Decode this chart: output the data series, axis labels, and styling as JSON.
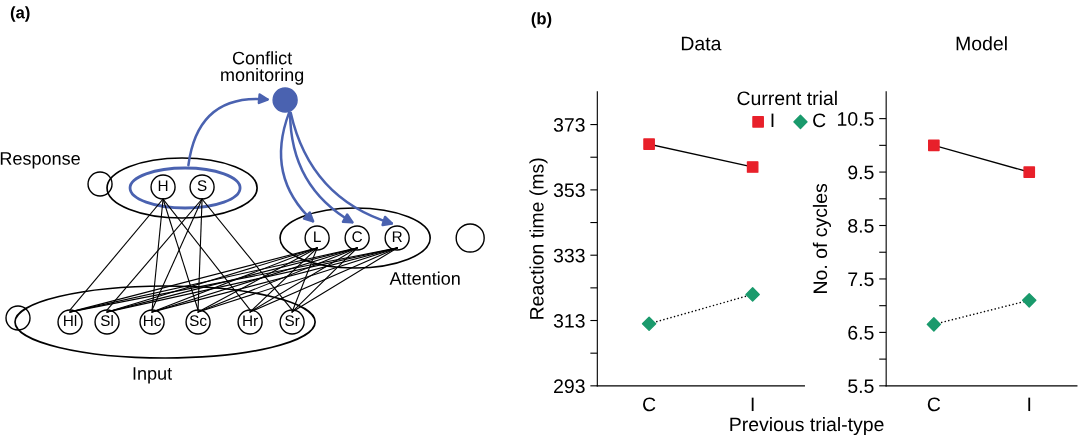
{
  "chart_data": [
    {
      "type": "other",
      "annotations": [
        "(a)",
        "Conflict monitoring",
        "Response",
        "Attention",
        "Input",
        "H",
        "S",
        "L",
        "C",
        "R",
        "Hl",
        "Sl",
        "Hc",
        "Sc",
        "Hr",
        "Sr"
      ]
    },
    {
      "type": "line",
      "title": "Data",
      "ylabel": "Reaction time (ms)",
      "xlabel": "Previous trial-type",
      "annotations": [
        "(b)"
      ],
      "categories": [
        "C",
        "I"
      ],
      "series": [
        {
          "name": "I",
          "color": "#e8202a",
          "marker": "square",
          "line_style": "solid",
          "values": [
            367,
            360
          ]
        },
        {
          "name": "C",
          "color": "#1a9a6c",
          "marker": "diamond",
          "line_style": "dotted",
          "values": [
            312,
            321
          ]
        }
      ],
      "ylim": [
        293,
        383
      ],
      "yticks": [
        293,
        {
          "value": 303,
          "label": null
        },
        313,
        {
          "value": 323,
          "label": null
        },
        333,
        {
          "value": 343,
          "label": null
        },
        353,
        {
          "value": 363,
          "label": null
        },
        373
      ],
      "legend": "top right",
      "legend_title": "Current trial",
      "grid": false
    },
    {
      "type": "line",
      "title": "Model",
      "ylabel": "No. of cycles",
      "categories": [
        "C",
        "I"
      ],
      "series": [
        {
          "color": "#e8202a",
          "marker": "square",
          "line_style": "solid",
          "values": [
            10.0,
            9.5
          ]
        },
        {
          "color": "#1a9a6c",
          "marker": "diamond",
          "line_style": "dotted",
          "values": [
            6.65,
            7.1
          ]
        }
      ],
      "ylim": [
        5.5,
        11.0
      ],
      "yticks": [
        5.5,
        {
          "value": 6.0,
          "label": null
        },
        6.5,
        {
          "value": 7.0,
          "label": null
        },
        7.5,
        {
          "value": 8.0,
          "label": null
        },
        8.5,
        {
          "value": 9.0,
          "label": null
        },
        9.5,
        {
          "value": 10.0,
          "label": null
        },
        10.5
      ],
      "grid": false
    }
  ]
}
